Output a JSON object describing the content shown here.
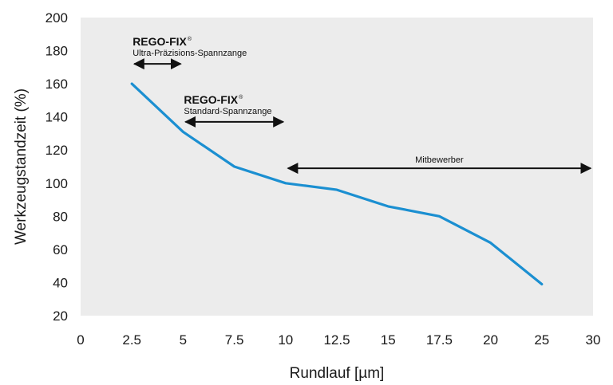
{
  "chart_data": {
    "type": "line",
    "xlabel": "Rundlauf [µm]",
    "ylabel": "Werkzeugstandzeit (%)",
    "x_ticks": [
      "0",
      "2.5",
      "5",
      "7.5",
      "10",
      "12.5",
      "15",
      "17.5",
      "20",
      "25",
      "30"
    ],
    "y_ticks": [
      20,
      40,
      60,
      80,
      100,
      120,
      140,
      160,
      180,
      200
    ],
    "ylim": [
      20,
      200
    ],
    "grid": false,
    "series": [
      {
        "x": [
          "2.5",
          "5",
          "7.5",
          "10",
          "12.5",
          "15",
          "17.5",
          "20",
          "25"
        ],
        "y": [
          160,
          131,
          110,
          100,
          96,
          86,
          80,
          64,
          39
        ],
        "color": "#1b8fd1"
      }
    ],
    "annotations": [
      {
        "brand": "REGO-FIX",
        "mark": "®",
        "text": "Ultra-Präzisions-Spannzange",
        "x_range": [
          "2.5",
          "5"
        ],
        "y": 172
      },
      {
        "brand": "REGO-FIX",
        "mark": "®",
        "text": "Standard-Spannzange",
        "x_range": [
          "5",
          "10"
        ],
        "y": 137
      },
      {
        "brand": "",
        "mark": "",
        "text": "Mitbewerber",
        "x_range": [
          "10",
          "30"
        ],
        "y": 109
      }
    ],
    "colors": {
      "plot_background": "#ececec",
      "line": "#1b8fd1",
      "arrow": "#111111"
    }
  }
}
